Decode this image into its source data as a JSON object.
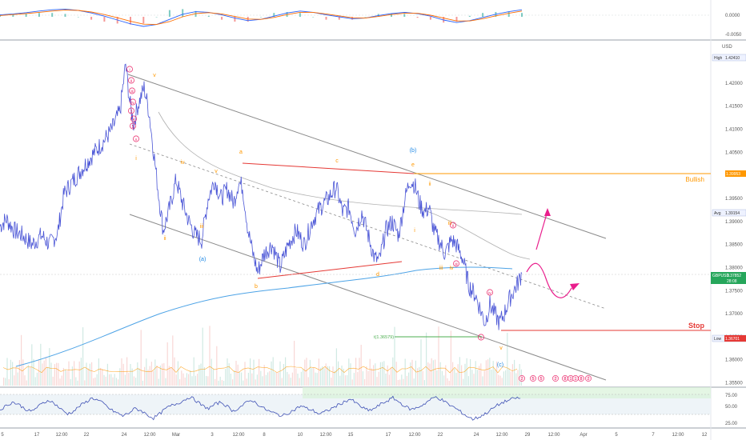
{
  "chart_data": [
    {
      "type": "line",
      "panel": "oscillator-top",
      "title": "",
      "y_ticks": [
        "0.0000",
        "-0.0050"
      ],
      "ylim": [
        -0.0065,
        0.0045
      ],
      "series": [
        {
          "color": "#2962ff",
          "values": [
            0.0006,
            0.0009,
            0.0013,
            0.0018,
            0.0022,
            0.0024,
            0.002,
            0.0012,
            0.0002,
            -0.001,
            -0.0022,
            -0.003,
            -0.0024,
            -0.0008,
            0.0008,
            0.0016,
            0.0014,
            0.0006,
            -0.0004,
            -0.0012,
            -0.0008,
            0.0002,
            0.0012,
            0.0018,
            0.0014,
            0.0006,
            0.0,
            -0.0006,
            -0.0004,
            0.0004,
            0.001,
            0.0014,
            0.001,
            0.0002,
            -0.001,
            -0.0018,
            -0.0012,
            -0.0002,
            0.0008,
            0.0016,
            0.0022
          ]
        },
        {
          "color": "#ff6d00",
          "values": [
            0.0004,
            0.0007,
            0.001,
            0.0014,
            0.0018,
            0.0021,
            0.002,
            0.0015,
            0.0007,
            -0.0003,
            -0.0014,
            -0.0023,
            -0.0024,
            -0.0015,
            0.0,
            0.001,
            0.0013,
            0.0009,
            0.0001,
            -0.0007,
            -0.0008,
            -0.0002,
            0.0007,
            0.0014,
            0.0014,
            0.0009,
            0.0003,
            -0.0003,
            -0.0004,
            0.0001,
            0.0007,
            0.0011,
            0.0011,
            0.0005,
            -0.0004,
            -0.0013,
            -0.0013,
            -0.0006,
            0.0003,
            0.0011,
            0.0018
          ]
        }
      ]
    },
    {
      "type": "line",
      "panel": "main-price",
      "title": "",
      "y_unit": "USD",
      "ylim": [
        1.3544,
        1.429
      ],
      "y_ticks": [
        "1.42000",
        "1.41500",
        "1.41000",
        "1.40500",
        "1.40000",
        "1.39500",
        "1.39000",
        "1.38500",
        "1.38000",
        "1.37500",
        "1.37000",
        "1.36500",
        "1.36000",
        "1.35500"
      ],
      "y_tick_values": [
        1.42,
        1.415,
        1.41,
        1.405,
        1.4,
        1.395,
        1.39,
        1.385,
        1.38,
        1.375,
        1.37,
        1.365,
        1.36,
        1.355
      ],
      "x_ticks": [
        "5",
        "17",
        "12:00",
        "22",
        "24",
        "12:00",
        "Mar",
        "3",
        "12:00",
        "8",
        "10",
        "12:00",
        "15",
        "17",
        "12:00",
        "22",
        "24",
        "12:00",
        "29",
        "12:00",
        "Apr",
        "5",
        "7",
        "12:00",
        "12"
      ],
      "price_path": [
        {
          "t": 0,
          "y": 1.389
        },
        {
          "t": 8,
          "y": 1.3905
        },
        {
          "t": 18,
          "y": 1.388
        },
        {
          "t": 28,
          "y": 1.387
        },
        {
          "t": 40,
          "y": 1.385
        },
        {
          "t": 52,
          "y": 1.387
        },
        {
          "t": 62,
          "y": 1.385
        },
        {
          "t": 72,
          "y": 1.3875
        },
        {
          "t": 80,
          "y": 1.396
        },
        {
          "t": 92,
          "y": 1.399
        },
        {
          "t": 105,
          "y": 1.402
        },
        {
          "t": 118,
          "y": 1.405
        },
        {
          "t": 130,
          "y": 1.4075
        },
        {
          "t": 140,
          "y": 1.41
        },
        {
          "t": 150,
          "y": 1.414
        },
        {
          "t": 157,
          "y": 1.4241
        },
        {
          "t": 162,
          "y": 1.416
        },
        {
          "t": 167,
          "y": 1.411
        },
        {
          "t": 172,
          "y": 1.415
        },
        {
          "t": 180,
          "y": 1.419
        },
        {
          "t": 186,
          "y": 1.414
        },
        {
          "t": 192,
          "y": 1.405
        },
        {
          "t": 198,
          "y": 1.396
        },
        {
          "t": 204,
          "y": 1.388
        },
        {
          "t": 212,
          "y": 1.393
        },
        {
          "t": 220,
          "y": 1.399
        },
        {
          "t": 228,
          "y": 1.394
        },
        {
          "t": 236,
          "y": 1.39
        },
        {
          "t": 244,
          "y": 1.387
        },
        {
          "t": 252,
          "y": 1.386
        },
        {
          "t": 260,
          "y": 1.395
        },
        {
          "t": 268,
          "y": 1.399
        },
        {
          "t": 276,
          "y": 1.395
        },
        {
          "t": 284,
          "y": 1.397
        },
        {
          "t": 292,
          "y": 1.394
        },
        {
          "t": 298,
          "y": 1.3985
        },
        {
          "t": 303,
          "y": 1.3975
        },
        {
          "t": 310,
          "y": 1.388
        },
        {
          "t": 316,
          "y": 1.383
        },
        {
          "t": 322,
          "y": 1.379
        },
        {
          "t": 330,
          "y": 1.383
        },
        {
          "t": 340,
          "y": 1.385
        },
        {
          "t": 350,
          "y": 1.38
        },
        {
          "t": 360,
          "y": 1.385
        },
        {
          "t": 370,
          "y": 1.388
        },
        {
          "t": 380,
          "y": 1.385
        },
        {
          "t": 390,
          "y": 1.39
        },
        {
          "t": 400,
          "y": 1.393
        },
        {
          "t": 410,
          "y": 1.395
        },
        {
          "t": 420,
          "y": 1.3975
        },
        {
          "t": 428,
          "y": 1.392
        },
        {
          "t": 436,
          "y": 1.393
        },
        {
          "t": 444,
          "y": 1.388
        },
        {
          "t": 452,
          "y": 1.392
        },
        {
          "t": 460,
          "y": 1.387
        },
        {
          "t": 468,
          "y": 1.382
        },
        {
          "t": 474,
          "y": 1.3815
        },
        {
          "t": 482,
          "y": 1.388
        },
        {
          "t": 490,
          "y": 1.39
        },
        {
          "t": 498,
          "y": 1.387
        },
        {
          "t": 506,
          "y": 1.395
        },
        {
          "t": 512,
          "y": 1.399
        },
        {
          "t": 518,
          "y": 1.398
        },
        {
          "t": 524,
          "y": 1.394
        },
        {
          "t": 530,
          "y": 1.392
        },
        {
          "t": 536,
          "y": 1.393
        },
        {
          "t": 542,
          "y": 1.388
        },
        {
          "t": 548,
          "y": 1.386
        },
        {
          "t": 556,
          "y": 1.383
        },
        {
          "t": 564,
          "y": 1.386
        },
        {
          "t": 570,
          "y": 1.385
        },
        {
          "t": 578,
          "y": 1.382
        },
        {
          "t": 586,
          "y": 1.376
        },
        {
          "t": 594,
          "y": 1.374
        },
        {
          "t": 600,
          "y": 1.371
        },
        {
          "t": 606,
          "y": 1.368
        },
        {
          "t": 612,
          "y": 1.372
        },
        {
          "t": 618,
          "y": 1.37
        },
        {
          "t": 624,
          "y": 1.368
        },
        {
          "t": 630,
          "y": 1.37
        },
        {
          "t": 636,
          "y": 1.373
        },
        {
          "t": 642,
          "y": 1.375
        },
        {
          "t": 648,
          "y": 1.377
        },
        {
          "t": 652,
          "y": 1.3788
        }
      ],
      "channel_top": [
        [
          1.4205,
          1.42
        ],
        [
          2.35,
          1.3828
        ]
      ],
      "horizontal_levels": [
        {
          "name": "bullish-level",
          "price": 1.39953,
          "label": "Bullish",
          "tag": "1.39953",
          "color": "#ff9800"
        },
        {
          "name": "stop-level",
          "price": 1.36701,
          "label": "Stop",
          "tag": "1.36701",
          "color": "#e53935"
        },
        {
          "name": "target-level",
          "price": 1.36579,
          "label": "t(1.36579)",
          "color": "#4caf50"
        }
      ],
      "price_tags": {
        "high": {
          "label": "High",
          "value": "1.42410"
        },
        "avg": {
          "label": "Avg",
          "value": "1.39154"
        },
        "last": {
          "label": "GBPUSD",
          "value": "1.37852",
          "time": "28:08"
        },
        "low": {
          "label": "Low",
          "value": "1.36701"
        }
      },
      "wave_labels": [
        {
          "text": "(b)",
          "color": "#1e88e5"
        },
        {
          "text": "(a)",
          "color": "#1e88e5"
        },
        {
          "text": "(c)",
          "color": "#1e88e5"
        },
        {
          "text": "a",
          "color": "#ff9800"
        },
        {
          "text": "b",
          "color": "#ff9800"
        },
        {
          "text": "c",
          "color": "#ff9800"
        },
        {
          "text": "d",
          "color": "#ff9800"
        },
        {
          "text": "e",
          "color": "#ff9800"
        },
        {
          "text": "i",
          "color": "#ff9800"
        },
        {
          "text": "ii",
          "color": "#ff9800"
        },
        {
          "text": "iii",
          "color": "#ff9800"
        },
        {
          "text": "iv",
          "color": "#ff9800"
        },
        {
          "text": "v",
          "color": "#ff9800"
        },
        {
          "text": "iii",
          "color": "#ff9800"
        },
        {
          "text": "iv",
          "color": "#ff9800"
        },
        {
          "text": "v",
          "color": "#ff9800"
        },
        {
          "text": "i",
          "color": "#ff9800"
        },
        {
          "text": "ii",
          "color": "#ff9800"
        },
        {
          "text": "iii",
          "color": "#ff9800"
        },
        {
          "text": "v",
          "color": "#ff9800"
        },
        {
          "text": "i",
          "color": "#e91e63"
        },
        {
          "text": "ii",
          "color": "#e91e63"
        },
        {
          "text": "iii",
          "color": "#e91e63"
        },
        {
          "text": "iv",
          "color": "#e91e63"
        },
        {
          "text": "v",
          "color": "#e91e63"
        },
        {
          "text": "3",
          "color": "#e91e63"
        },
        {
          "text": "4",
          "color": "#e91e63"
        },
        {
          "text": "5",
          "color": "#e91e63"
        },
        {
          "text": "ii",
          "color": "#e91e63"
        },
        {
          "text": "iii",
          "color": "#e91e63"
        },
        {
          "text": "iv",
          "color": "#e91e63"
        },
        {
          "text": "v",
          "color": "#e91e63"
        }
      ],
      "event_pills": [
        "2",
        "5",
        "5",
        "2",
        "8",
        "1",
        "1",
        "8",
        "2"
      ]
    },
    {
      "type": "line",
      "panel": "rsi",
      "title": "",
      "y_ticks": [
        "75.00",
        "50.00",
        "25.00"
      ],
      "ylim": [
        15,
        90
      ],
      "band": [
        30,
        70
      ],
      "values": [
        48,
        55,
        62,
        58,
        50,
        44,
        52,
        60,
        66,
        58,
        48,
        40,
        45,
        55,
        62,
        70,
        65,
        58,
        48,
        42,
        36,
        42,
        50,
        46,
        38,
        32,
        40,
        50,
        56,
        60,
        66,
        72,
        64,
        55,
        50,
        58,
        62,
        54,
        45,
        52,
        60,
        66,
        58,
        50,
        44,
        40,
        36,
        42,
        48,
        55,
        50,
        46,
        40,
        44,
        50,
        56,
        62,
        68,
        60,
        52,
        46,
        50,
        58,
        64,
        70,
        62,
        54,
        48,
        52,
        58,
        66,
        72,
        66,
        58,
        52,
        44,
        36,
        30,
        34,
        40,
        48,
        56,
        62,
        66,
        70,
        68
      ]
    }
  ]
}
